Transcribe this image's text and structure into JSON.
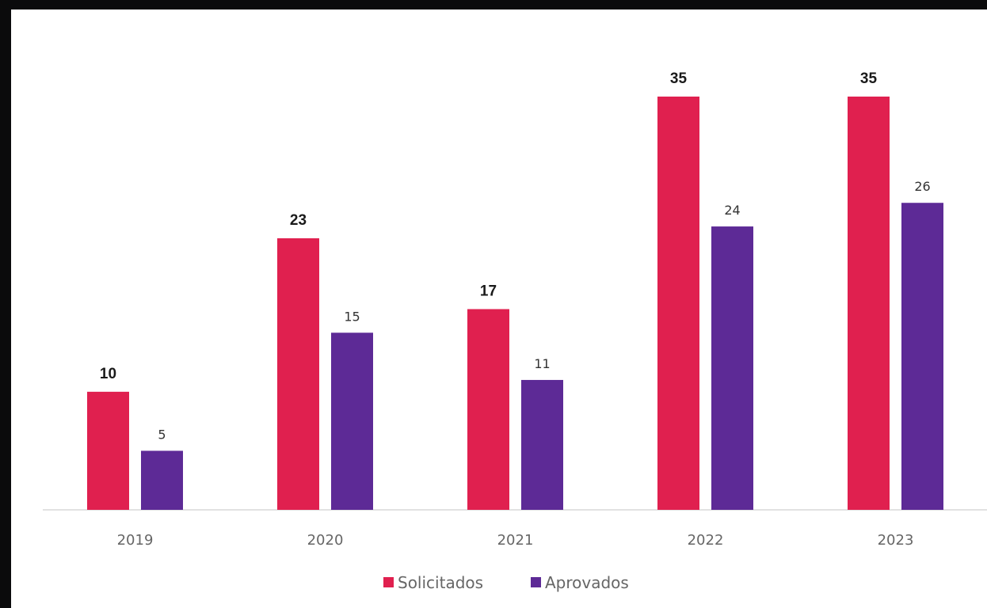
{
  "chart_data": {
    "type": "bar",
    "categories": [
      "2019",
      "2020",
      "2021",
      "2022",
      "2023"
    ],
    "series": [
      {
        "name": "Solicitados",
        "values": [
          10,
          23,
          17,
          35,
          35
        ],
        "color": "#e0204f"
      },
      {
        "name": "Aprovados",
        "values": [
          5,
          15,
          11,
          24,
          26
        ],
        "color": "#5d2a96"
      }
    ],
    "title": "",
    "xlabel": "",
    "ylabel": "",
    "ylim": [
      0,
      35
    ],
    "grid": false,
    "legend": "bottom"
  }
}
